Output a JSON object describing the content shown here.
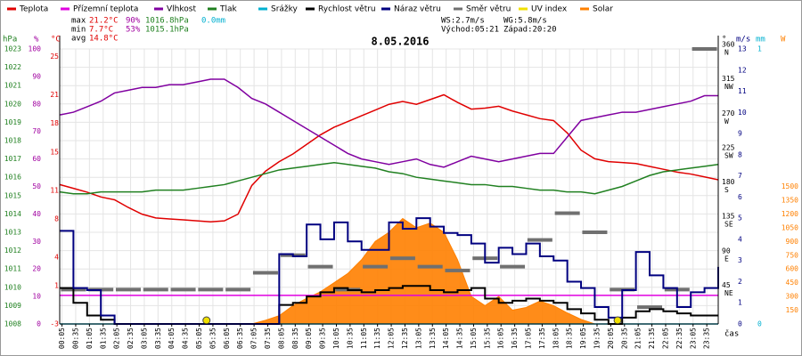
{
  "chart_data": {
    "type": "line",
    "title": "8.05.2016",
    "stats": {
      "rows": [
        {
          "label": "max",
          "temp": "21.2°C",
          "hum": "90%",
          "press": "1016.8hPa",
          "rain": "0.0mm"
        },
        {
          "label": "min",
          "temp": "7.7°C",
          "hum": "53%",
          "press": "1015.1hPa"
        },
        {
          "label": "avg",
          "temp": "14.8°C"
        }
      ],
      "ws": "WS:2.7m/s",
      "wg": "WG:5.8m/s",
      "sunrise": "Východ:05:21",
      "sunset": "Západ:20:20"
    },
    "x_label": "čas",
    "xlim": [
      0,
      1440
    ],
    "xticks": [
      {
        "value": 5,
        "label": "00:05"
      },
      {
        "value": 35,
        "label": "00:35"
      },
      {
        "value": 65,
        "label": "01:05"
      },
      {
        "value": 95,
        "label": "01:35"
      },
      {
        "value": 125,
        "label": "02:05"
      },
      {
        "value": 155,
        "label": "02:35"
      },
      {
        "value": 185,
        "label": "03:05"
      },
      {
        "value": 215,
        "label": "03:35"
      },
      {
        "value": 245,
        "label": "04:05"
      },
      {
        "value": 275,
        "label": "04:35"
      },
      {
        "value": 305,
        "label": "05:05"
      },
      {
        "value": 335,
        "label": "05:35"
      },
      {
        "value": 365,
        "label": "06:05"
      },
      {
        "value": 395,
        "label": "06:35"
      },
      {
        "value": 425,
        "label": "07:05"
      },
      {
        "value": 455,
        "label": "07:35"
      },
      {
        "value": 485,
        "label": "08:05"
      },
      {
        "value": 515,
        "label": "08:35"
      },
      {
        "value": 545,
        "label": "09:05"
      },
      {
        "value": 575,
        "label": "09:35"
      },
      {
        "value": 605,
        "label": "10:05"
      },
      {
        "value": 635,
        "label": "10:35"
      },
      {
        "value": 665,
        "label": "11:05"
      },
      {
        "value": 695,
        "label": "11:35"
      },
      {
        "value": 725,
        "label": "12:05"
      },
      {
        "value": 755,
        "label": "12:35"
      },
      {
        "value": 785,
        "label": "13:05"
      },
      {
        "value": 815,
        "label": "13:35"
      },
      {
        "value": 845,
        "label": "14:05"
      },
      {
        "value": 875,
        "label": "14:35"
      },
      {
        "value": 905,
        "label": "15:05"
      },
      {
        "value": 935,
        "label": "15:35"
      },
      {
        "value": 965,
        "label": "16:05"
      },
      {
        "value": 995,
        "label": "16:35"
      },
      {
        "value": 1025,
        "label": "17:05"
      },
      {
        "value": 1055,
        "label": "17:35"
      },
      {
        "value": 1085,
        "label": "18:05"
      },
      {
        "value": 1115,
        "label": "18:35"
      },
      {
        "value": 1145,
        "label": "19:05"
      },
      {
        "value": 1175,
        "label": "19:35"
      },
      {
        "value": 1205,
        "label": "20:05"
      },
      {
        "value": 1235,
        "label": "20:35"
      },
      {
        "value": 1265,
        "label": "21:05"
      },
      {
        "value": 1295,
        "label": "21:35"
      },
      {
        "value": 1325,
        "label": "22:05"
      },
      {
        "value": 1355,
        "label": "22:35"
      },
      {
        "value": 1385,
        "label": "23:05"
      },
      {
        "value": 1415,
        "label": "23:35"
      }
    ],
    "axes": {
      "hpa": {
        "title": "hPa",
        "color": "#208020",
        "lim": [
          1008,
          1023
        ],
        "ticks": [
          1008,
          1009,
          1010,
          1011,
          1012,
          1013,
          1014,
          1015,
          1016,
          1017,
          1018,
          1019,
          1020,
          1021,
          1022,
          1023
        ]
      },
      "pct": {
        "title": "%",
        "color": "#a000a0",
        "lim": [
          0,
          100
        ],
        "ticks": [
          0,
          10,
          20,
          30,
          40,
          50,
          60,
          70,
          80,
          90,
          100
        ]
      },
      "c": {
        "title": "°C",
        "color": "#e00000",
        "lim": [
          -3,
          25.8
        ],
        "ticks": [
          -3,
          1,
          4,
          8,
          11,
          15,
          18,
          21,
          25
        ]
      },
      "dir": {
        "title": "°",
        "color": "#000000",
        "lim": [
          0,
          360
        ],
        "ticks": [
          45,
          90,
          135,
          180,
          225,
          270,
          315,
          360
        ],
        "tick_names": [
          "NE",
          "E",
          "SE",
          "S",
          "SW",
          "W",
          "NW",
          "N"
        ]
      },
      "ms": {
        "title": "m/s",
        "color": "#000080",
        "lim": [
          0,
          13
        ],
        "ticks": [
          0,
          1,
          2,
          3,
          4,
          5,
          6,
          7,
          8,
          9,
          10,
          11,
          12,
          13
        ]
      },
      "mm": {
        "title": "mm",
        "color": "#00b0d0",
        "lim": [
          0,
          1
        ],
        "ticks": [
          0,
          1
        ]
      },
      "w": {
        "title": "W",
        "color": "#ff8000",
        "lim": [
          0,
          3000
        ],
        "ticks": [
          150,
          300,
          450,
          600,
          750,
          900,
          1050,
          1200,
          1350,
          1500
        ]
      }
    },
    "grid": true,
    "x": [
      0,
      30,
      60,
      90,
      120,
      150,
      180,
      210,
      240,
      270,
      300,
      330,
      360,
      390,
      420,
      450,
      480,
      510,
      540,
      570,
      600,
      630,
      660,
      690,
      720,
      750,
      780,
      810,
      840,
      870,
      900,
      930,
      960,
      990,
      1020,
      1050,
      1080,
      1110,
      1140,
      1170,
      1200,
      1230,
      1260,
      1290,
      1320,
      1350,
      1380,
      1410,
      1440
    ],
    "series": [
      {
        "name": "Teplota",
        "color": "#e00000",
        "axis": "c",
        "style": "line",
        "values": [
          11.6,
          11.2,
          10.8,
          10.3,
          10.0,
          9.2,
          8.5,
          8.1,
          8.0,
          7.9,
          7.8,
          7.7,
          7.8,
          8.5,
          11.5,
          13.0,
          14.0,
          14.8,
          15.8,
          16.8,
          17.6,
          18.2,
          18.8,
          19.4,
          20.0,
          20.3,
          20.0,
          20.5,
          21.0,
          20.2,
          19.5,
          19.6,
          19.8,
          19.3,
          18.9,
          18.5,
          18.3,
          17.0,
          15.2,
          14.3,
          14.0,
          13.9,
          13.8,
          13.5,
          13.2,
          12.9,
          12.7,
          12.4,
          12.1
        ]
      },
      {
        "name": "Přízemní teplota",
        "color": "#e000e0",
        "axis": "c",
        "style": "line",
        "values": [
          0,
          0,
          0,
          0,
          0,
          0,
          0,
          0,
          0,
          0,
          0,
          0,
          0,
          0,
          0,
          0,
          0,
          0,
          0,
          0,
          0,
          0,
          0,
          0,
          0,
          0,
          0,
          0,
          0,
          0,
          0,
          0,
          0,
          0,
          0,
          0,
          0,
          0,
          0,
          0,
          0,
          0,
          0,
          0,
          0,
          0,
          0,
          0,
          0
        ]
      },
      {
        "name": "Vlhkost",
        "color": "#8000a0",
        "axis": "pct",
        "style": "line",
        "values": [
          76,
          77,
          79,
          81,
          84,
          85,
          86,
          86,
          87,
          87,
          88,
          89,
          89,
          86,
          82,
          80,
          77,
          74,
          71,
          68,
          65,
          62,
          60,
          59,
          58,
          59,
          60,
          58,
          57,
          59,
          61,
          60,
          59,
          60,
          61,
          62,
          62,
          68,
          74,
          75,
          76,
          77,
          77,
          78,
          79,
          80,
          81,
          83,
          83
        ]
      },
      {
        "name": "Tlak",
        "color": "#208020",
        "axis": "hpa",
        "style": "line",
        "values": [
          1015.2,
          1015.1,
          1015.1,
          1015.2,
          1015.2,
          1015.2,
          1015.2,
          1015.3,
          1015.3,
          1015.3,
          1015.4,
          1015.5,
          1015.6,
          1015.8,
          1016.0,
          1016.2,
          1016.4,
          1016.5,
          1016.6,
          1016.7,
          1016.8,
          1016.7,
          1016.6,
          1016.5,
          1016.3,
          1016.2,
          1016.0,
          1015.9,
          1015.8,
          1015.7,
          1015.6,
          1015.6,
          1015.5,
          1015.5,
          1015.4,
          1015.3,
          1015.3,
          1015.2,
          1015.2,
          1015.1,
          1015.3,
          1015.5,
          1015.8,
          1016.1,
          1016.3,
          1016.4,
          1016.5,
          1016.6,
          1016.7
        ]
      },
      {
        "name": "Srážky",
        "color": "#00b0d0",
        "axis": "mm",
        "style": "line",
        "values": [
          0,
          0,
          0,
          0,
          0,
          0,
          0,
          0,
          0,
          0,
          0,
          0,
          0,
          0,
          0,
          0,
          0,
          0,
          0,
          0,
          0,
          0,
          0,
          0,
          0,
          0,
          0,
          0,
          0,
          0,
          0,
          0,
          0,
          0,
          0,
          0,
          0,
          0,
          0,
          0,
          0,
          0,
          0,
          0,
          0,
          0,
          0,
          0,
          0
        ]
      },
      {
        "name": "Rychlost větru",
        "color": "#000000",
        "axis": "ms",
        "style": "step",
        "values": [
          1.7,
          1.0,
          0.4,
          0.2,
          0,
          0,
          0,
          0,
          0,
          0,
          0,
          0,
          0,
          0,
          0,
          0,
          0.9,
          1.0,
          1.3,
          1.5,
          1.7,
          1.6,
          1.5,
          1.6,
          1.7,
          1.8,
          1.8,
          1.6,
          1.5,
          1.6,
          1.7,
          1.2,
          1.0,
          1.1,
          1.2,
          1.1,
          1.0,
          0.7,
          0.5,
          0.2,
          0,
          0.3,
          0.6,
          0.7,
          0.6,
          0.5,
          0.4,
          0.4,
          0.4
        ]
      },
      {
        "name": "Náraz větru",
        "color": "#000080",
        "axis": "ms",
        "style": "step",
        "values": [
          4.4,
          1.7,
          1.6,
          0.4,
          0,
          0,
          0,
          0,
          0,
          0,
          0,
          0,
          0,
          0,
          0,
          0,
          3.3,
          3.2,
          4.7,
          4.0,
          4.8,
          3.9,
          3.5,
          3.5,
          4.8,
          4.5,
          5.0,
          4.6,
          4.3,
          4.2,
          3.8,
          2.9,
          3.6,
          3.3,
          3.8,
          3.2,
          3.0,
          2.0,
          1.7,
          0.8,
          0.3,
          1.6,
          3.4,
          2.3,
          1.7,
          0.8,
          1.5,
          1.7,
          2.7
        ]
      },
      {
        "name": "Směr větru",
        "color": "#707070",
        "axis": "dir",
        "style": "dash",
        "x": [
          30,
          90,
          150,
          210,
          270,
          330,
          390,
          450,
          510,
          570,
          630,
          690,
          750,
          810,
          870,
          930,
          990,
          1050,
          1110,
          1170,
          1230,
          1290,
          1350,
          1410
        ],
        "values": [
          45,
          45,
          45,
          45,
          45,
          45,
          45,
          67,
          90,
          75,
          45,
          75,
          86,
          75,
          70,
          86,
          75,
          110,
          145,
          120,
          45,
          22,
          45,
          360
        ]
      },
      {
        "name": "UV index",
        "color": "#f0e000",
        "axis": "ms",
        "style": "dot",
        "x": [
          321,
          1220
        ],
        "values": [
          0,
          0
        ]
      },
      {
        "name": "Solar",
        "color": "#ff8000",
        "axis": "w",
        "style": "area",
        "values": [
          0,
          0,
          0,
          0,
          0,
          0,
          0,
          0,
          0,
          0,
          0,
          0,
          0,
          0,
          0,
          40,
          90,
          200,
          280,
          350,
          450,
          550,
          700,
          900,
          1000,
          1150,
          1050,
          1100,
          1000,
          700,
          300,
          200,
          300,
          150,
          180,
          250,
          200,
          120,
          50,
          0,
          0,
          0,
          0,
          0,
          0,
          0,
          0,
          0,
          0
        ]
      }
    ]
  }
}
